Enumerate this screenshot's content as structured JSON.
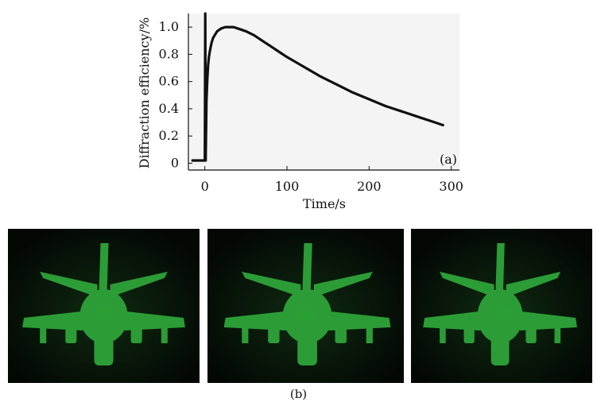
{
  "chart_data": {
    "type": "line",
    "title": "",
    "xlabel": "Time/s",
    "ylabel": "Diffraction efficiency/%",
    "panel_label": "(a)",
    "xlim": [
      -20,
      310
    ],
    "ylim": [
      -0.05,
      1.1
    ],
    "x_ticks": [
      0,
      100,
      200,
      300
    ],
    "y_ticks": [
      0,
      0.2,
      0.4,
      0.6,
      0.8,
      1.0
    ],
    "x_tick_labels": [
      "0",
      "100",
      "200",
      "300"
    ],
    "y_tick_labels": [
      "0",
      "0.2",
      "0.4",
      "0.6",
      "0.8",
      "1.0"
    ],
    "grid": false,
    "series": [
      {
        "x": [
          -15,
          -10,
          -5,
          0,
          0.5,
          1,
          2,
          3,
          4,
          5,
          6,
          8,
          10,
          15,
          20,
          25,
          30,
          35,
          40,
          50,
          60,
          70,
          80,
          90,
          100,
          120,
          140,
          160,
          180,
          200,
          220,
          240,
          260,
          280,
          290
        ],
        "y": [
          0.02,
          0.02,
          0.02,
          0.02,
          1.12,
          0.02,
          0.45,
          0.62,
          0.72,
          0.78,
          0.82,
          0.88,
          0.92,
          0.97,
          0.99,
          1.0,
          1.0,
          1.0,
          0.99,
          0.97,
          0.94,
          0.9,
          0.86,
          0.82,
          0.78,
          0.71,
          0.64,
          0.58,
          0.52,
          0.47,
          0.42,
          0.38,
          0.34,
          0.3,
          0.28
        ]
      }
    ]
  },
  "figure_b": {
    "label": "(b)",
    "panels": [
      {
        "name": "hologram-view-left",
        "color": "#2fa83a"
      },
      {
        "name": "hologram-view-center",
        "color": "#2fa83a"
      },
      {
        "name": "hologram-view-right",
        "color": "#2fa83a"
      }
    ]
  }
}
